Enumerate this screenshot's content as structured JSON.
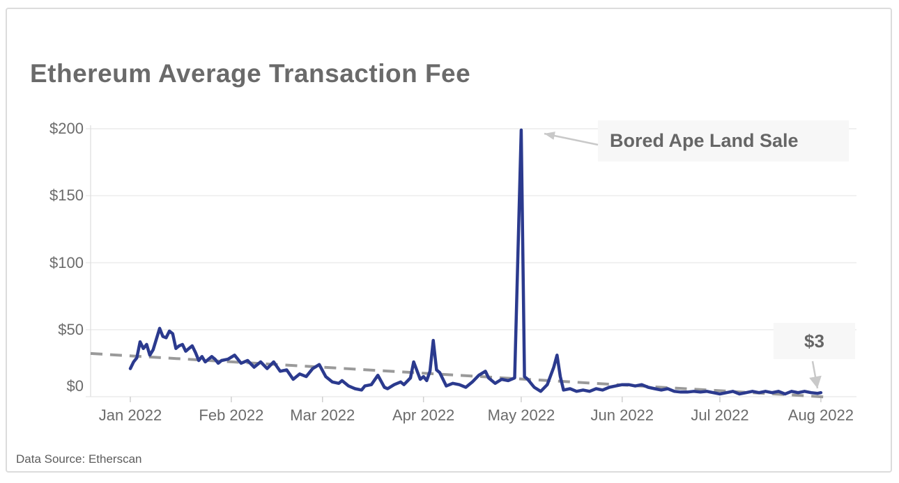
{
  "card": {
    "source_note": "Data Source: Etherscan"
  },
  "chart_data": {
    "type": "line",
    "title": "Ethereum Average Transaction Fee",
    "xlabel": "",
    "ylabel": "",
    "ylim": [
      0,
      200
    ],
    "grid": "horizontal",
    "legend": "none",
    "colors": {
      "series_line": "#2b3a8e",
      "trend_line": "#9a9a9a",
      "gridline": "#ececec",
      "axis_line": "#e0e0e0",
      "tick": "#cfcfcf",
      "arrow": "#c9c9c9",
      "text": "#6b6b6b",
      "annotation_bg": "#f7f7f7"
    },
    "x_axis": {
      "tick_labels": [
        "Jan 2022",
        "Feb 2022",
        "Mar 2022",
        "Apr 2022",
        "May 2022",
        "Jun 2022",
        "Jul 2022",
        "Aug 2022"
      ],
      "tick_dates": [
        "2022-01-01",
        "2022-02-01",
        "2022-03-01",
        "2022-04-01",
        "2022-05-01",
        "2022-06-01",
        "2022-07-01",
        "2022-08-01"
      ]
    },
    "y_axis": {
      "tick_labels": [
        "$0",
        "$50",
        "$100",
        "$150",
        "$200"
      ],
      "tick_values": [
        0,
        50,
        100,
        150,
        200
      ]
    },
    "series": [
      {
        "name": "Average Transaction Fee (USD)",
        "points": [
          [
            "2022-01-01",
            21
          ],
          [
            "2022-01-02",
            26
          ],
          [
            "2022-01-03",
            29
          ],
          [
            "2022-01-04",
            41
          ],
          [
            "2022-01-05",
            36
          ],
          [
            "2022-01-06",
            39
          ],
          [
            "2022-01-07",
            31
          ],
          [
            "2022-01-08",
            35
          ],
          [
            "2022-01-09",
            43
          ],
          [
            "2022-01-10",
            51
          ],
          [
            "2022-01-11",
            45
          ],
          [
            "2022-01-12",
            44
          ],
          [
            "2022-01-13",
            49
          ],
          [
            "2022-01-14",
            47
          ],
          [
            "2022-01-15",
            36
          ],
          [
            "2022-01-16",
            38
          ],
          [
            "2022-01-17",
            39
          ],
          [
            "2022-01-18",
            34
          ],
          [
            "2022-01-19",
            36
          ],
          [
            "2022-01-20",
            38
          ],
          [
            "2022-01-21",
            33
          ],
          [
            "2022-01-22",
            27
          ],
          [
            "2022-01-23",
            30
          ],
          [
            "2022-01-24",
            26
          ],
          [
            "2022-01-25",
            28
          ],
          [
            "2022-01-26",
            30
          ],
          [
            "2022-01-27",
            28
          ],
          [
            "2022-01-28",
            25
          ],
          [
            "2022-01-29",
            27
          ],
          [
            "2022-01-31",
            28
          ],
          [
            "2022-02-02",
            31
          ],
          [
            "2022-02-04",
            25
          ],
          [
            "2022-02-06",
            27
          ],
          [
            "2022-02-08",
            22
          ],
          [
            "2022-02-10",
            26
          ],
          [
            "2022-02-12",
            21
          ],
          [
            "2022-02-14",
            26
          ],
          [
            "2022-02-16",
            19
          ],
          [
            "2022-02-18",
            20
          ],
          [
            "2022-02-20",
            13
          ],
          [
            "2022-02-22",
            17
          ],
          [
            "2022-02-24",
            15
          ],
          [
            "2022-02-26",
            21
          ],
          [
            "2022-02-28",
            24
          ],
          [
            "2022-03-02",
            15
          ],
          [
            "2022-03-04",
            11
          ],
          [
            "2022-03-06",
            10
          ],
          [
            "2022-03-07",
            12
          ],
          [
            "2022-03-09",
            8
          ],
          [
            "2022-03-11",
            6
          ],
          [
            "2022-03-13",
            5
          ],
          [
            "2022-03-14",
            8
          ],
          [
            "2022-03-16",
            9
          ],
          [
            "2022-03-18",
            16
          ],
          [
            "2022-03-20",
            7
          ],
          [
            "2022-03-21",
            6
          ],
          [
            "2022-03-23",
            9
          ],
          [
            "2022-03-25",
            11
          ],
          [
            "2022-03-26",
            9
          ],
          [
            "2022-03-28",
            14
          ],
          [
            "2022-03-29",
            26
          ],
          [
            "2022-03-31",
            13
          ],
          [
            "2022-04-01",
            15
          ],
          [
            "2022-04-02",
            12
          ],
          [
            "2022-04-03",
            19
          ],
          [
            "2022-04-04",
            42
          ],
          [
            "2022-04-05",
            20
          ],
          [
            "2022-04-06",
            18
          ],
          [
            "2022-04-08",
            8
          ],
          [
            "2022-04-10",
            10
          ],
          [
            "2022-04-12",
            9
          ],
          [
            "2022-04-14",
            7
          ],
          [
            "2022-04-16",
            11
          ],
          [
            "2022-04-18",
            16
          ],
          [
            "2022-04-20",
            19
          ],
          [
            "2022-04-21",
            14
          ],
          [
            "2022-04-23",
            10
          ],
          [
            "2022-04-25",
            13
          ],
          [
            "2022-04-27",
            12
          ],
          [
            "2022-04-29",
            14
          ],
          [
            "2022-05-01",
            199
          ],
          [
            "2022-05-02",
            15
          ],
          [
            "2022-05-03",
            13
          ],
          [
            "2022-05-05",
            7
          ],
          [
            "2022-05-07",
            4
          ],
          [
            "2022-05-09",
            9
          ],
          [
            "2022-05-11",
            22
          ],
          [
            "2022-05-12",
            31
          ],
          [
            "2022-05-13",
            15
          ],
          [
            "2022-05-14",
            5
          ],
          [
            "2022-05-16",
            6
          ],
          [
            "2022-05-18",
            4
          ],
          [
            "2022-05-20",
            5
          ],
          [
            "2022-05-22",
            4
          ],
          [
            "2022-05-24",
            6
          ],
          [
            "2022-05-26",
            5
          ],
          [
            "2022-05-28",
            7
          ],
          [
            "2022-05-30",
            8
          ],
          [
            "2022-06-01",
            9
          ],
          [
            "2022-06-03",
            9
          ],
          [
            "2022-06-05",
            8
          ],
          [
            "2022-06-07",
            9
          ],
          [
            "2022-06-09",
            7
          ],
          [
            "2022-06-11",
            6
          ],
          [
            "2022-06-13",
            5
          ],
          [
            "2022-06-15",
            6
          ],
          [
            "2022-06-17",
            4
          ],
          [
            "2022-06-19",
            3.5
          ],
          [
            "2022-06-21",
            3.5
          ],
          [
            "2022-06-23",
            4
          ],
          [
            "2022-06-25",
            3.5
          ],
          [
            "2022-06-27",
            4
          ],
          [
            "2022-06-29",
            3
          ],
          [
            "2022-07-01",
            2
          ],
          [
            "2022-07-03",
            3
          ],
          [
            "2022-07-05",
            4
          ],
          [
            "2022-07-07",
            2
          ],
          [
            "2022-07-09",
            3
          ],
          [
            "2022-07-11",
            4
          ],
          [
            "2022-07-13",
            3
          ],
          [
            "2022-07-15",
            4
          ],
          [
            "2022-07-17",
            3
          ],
          [
            "2022-07-19",
            4
          ],
          [
            "2022-07-21",
            2
          ],
          [
            "2022-07-23",
            4
          ],
          [
            "2022-07-25",
            3
          ],
          [
            "2022-07-27",
            4
          ],
          [
            "2022-07-29",
            3
          ],
          [
            "2022-07-31",
            2.5
          ],
          [
            "2022-08-01",
            3
          ]
        ]
      }
    ],
    "trend_line": {
      "style": "dashed",
      "start": {
        "date": "2022-01-01",
        "value": 30.5
      },
      "end": {
        "date": "2022-08-01",
        "value": 0
      }
    },
    "annotations": [
      {
        "label": "Bored Ape Land Sale",
        "points_to": {
          "date": "2022-05-01",
          "value": 199
        }
      },
      {
        "label": "$3",
        "points_to": {
          "date": "2022-08-01",
          "value": 3
        }
      }
    ]
  }
}
